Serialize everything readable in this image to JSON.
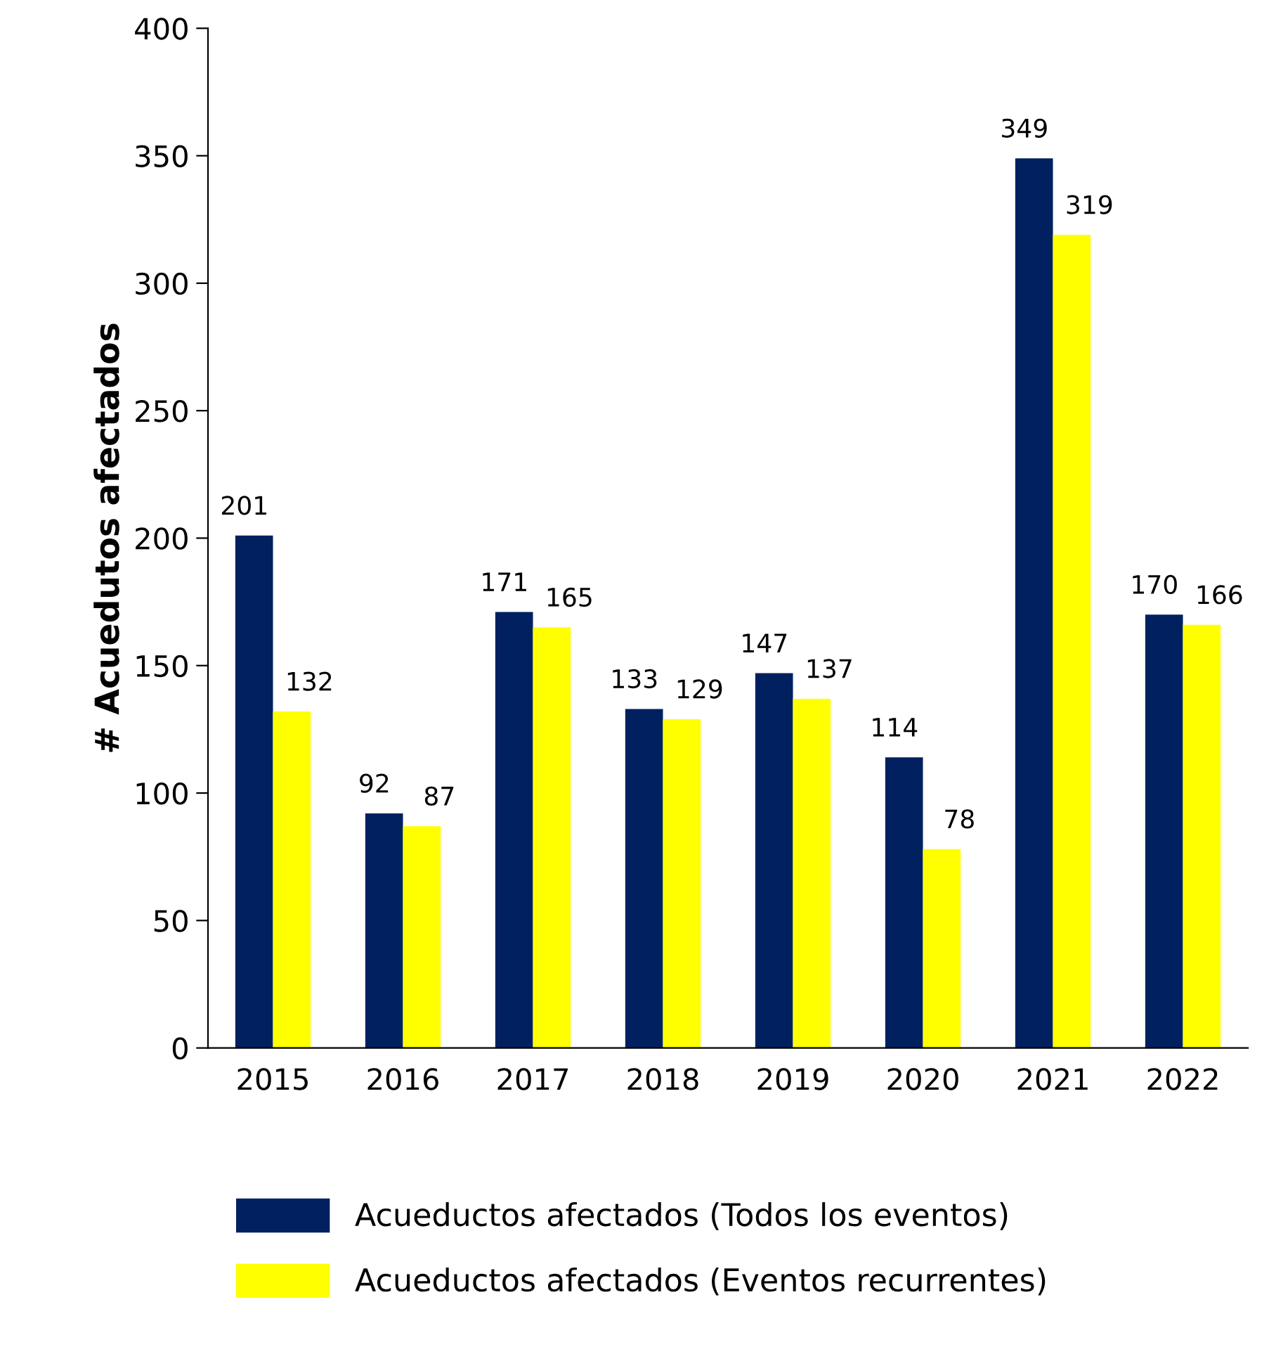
{
  "chart_data": {
    "type": "bar",
    "ylabel": "# Acuedutos afectados",
    "categories": [
      "2015",
      "2016",
      "2017",
      "2018",
      "2019",
      "2020",
      "2021",
      "2022"
    ],
    "series": [
      {
        "name": "Acueductos afectados (Todos los eventos)",
        "color": "#002060",
        "values": [
          201,
          92,
          171,
          133,
          147,
          114,
          349,
          170
        ]
      },
      {
        "name": "Acueductos afectados (Eventos recurrentes)",
        "color": "#ffff00",
        "values": [
          132,
          87,
          165,
          129,
          137,
          78,
          319,
          166
        ]
      }
    ],
    "ylim": [
      0,
      400
    ],
    "yticks": [
      0,
      50,
      100,
      150,
      200,
      250,
      300,
      350,
      400
    ],
    "grid": false,
    "legend": "bottom",
    "data_labels": true
  }
}
